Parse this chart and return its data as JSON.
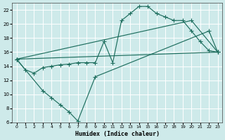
{
  "xlabel": "Humidex (Indice chaleur)",
  "bg_color": "#ceeaea",
  "grid_color": "#ffffff",
  "line_color": "#1e6e5e",
  "xlim": [
    -0.5,
    23.5
  ],
  "ylim": [
    6,
    23
  ],
  "xticks": [
    0,
    1,
    2,
    3,
    4,
    5,
    6,
    7,
    8,
    9,
    10,
    11,
    12,
    13,
    14,
    15,
    16,
    17,
    18,
    19,
    20,
    21,
    22,
    23
  ],
  "yticks": [
    6,
    8,
    10,
    12,
    14,
    16,
    18,
    20,
    22
  ],
  "line1_x": [
    0,
    1,
    2,
    3,
    4,
    5,
    6,
    7,
    8,
    9,
    10,
    11,
    12,
    13,
    14,
    15,
    16,
    17,
    18,
    19,
    20,
    21,
    22,
    23
  ],
  "line1_y": [
    15.0,
    13.5,
    13.0,
    13.8,
    14.0,
    14.2,
    14.3,
    14.5,
    14.5,
    14.5,
    17.5,
    14.5,
    20.5,
    21.5,
    22.5,
    22.5,
    21.5,
    21.0,
    20.5,
    20.5,
    19.0,
    17.5,
    16.2,
    16.0
  ],
  "line2_x": [
    0,
    3,
    4,
    5,
    6,
    7,
    9,
    22,
    23
  ],
  "line2_y": [
    15.0,
    10.5,
    9.5,
    8.5,
    7.5,
    6.2,
    12.5,
    19.0,
    16.0
  ],
  "line3_x": [
    0,
    23
  ],
  "line3_y": [
    15.0,
    16.0
  ],
  "line4_x": [
    0,
    20,
    23
  ],
  "line4_y": [
    15.0,
    20.5,
    16.0
  ]
}
